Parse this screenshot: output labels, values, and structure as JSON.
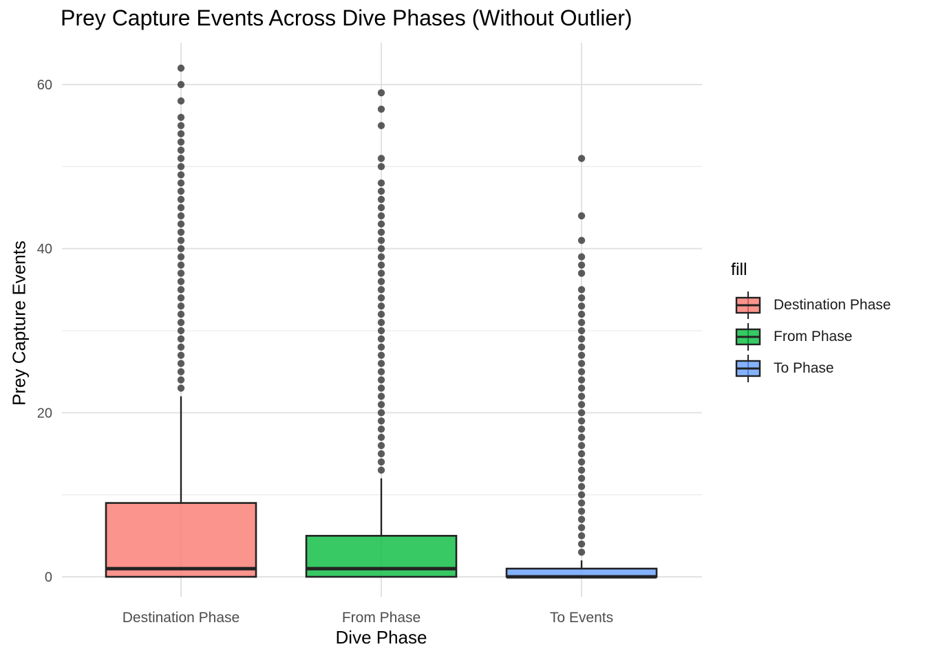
{
  "chart_data": {
    "type": "box",
    "title": "Prey Capture Events Across Dive Phases (Without Outlier)",
    "xlabel": "Dive Phase",
    "ylabel": "Prey Capture Events",
    "ylim": [
      -2.4,
      65
    ],
    "yticks": [
      0,
      20,
      40,
      60
    ],
    "grid": true,
    "legend": {
      "title": "fill",
      "position": "right",
      "entries": [
        "Destination Phase",
        "From Phase",
        "To Phase"
      ]
    },
    "categories": [
      "Destination Phase",
      "From Phase",
      "To Events"
    ],
    "colors": [
      "#F8766D",
      "#00BA38",
      "#619CFF"
    ],
    "boxes": [
      {
        "category": "Destination Phase",
        "fill": "Destination Phase",
        "q1": 0,
        "median": 1,
        "q3": 9,
        "whisker_low": 0,
        "whisker_high": 22,
        "outliers": [
          23,
          24,
          25,
          26,
          27,
          28,
          29,
          30,
          31,
          32,
          33,
          34,
          35,
          36,
          37,
          38,
          39,
          40,
          41,
          42,
          43,
          44,
          45,
          46,
          47,
          48,
          49,
          50,
          51,
          52,
          53,
          54,
          55,
          56,
          58,
          60,
          62
        ]
      },
      {
        "category": "From Phase",
        "fill": "From Phase",
        "q1": 0,
        "median": 1,
        "q3": 5,
        "whisker_low": 0,
        "whisker_high": 12,
        "outliers": [
          13,
          14,
          15,
          16,
          17,
          18,
          19,
          20,
          21,
          22,
          23,
          24,
          25,
          26,
          27,
          28,
          29,
          30,
          31,
          32,
          33,
          34,
          35,
          36,
          37,
          38,
          39,
          40,
          41,
          42,
          43,
          44,
          45,
          46,
          47,
          48,
          50,
          51,
          55,
          57,
          59
        ]
      },
      {
        "category": "To Events",
        "fill": "To Phase",
        "q1": 0,
        "median": 0,
        "q3": 1,
        "whisker_low": 0,
        "whisker_high": 2,
        "outliers": [
          3,
          4,
          5,
          6,
          7,
          8,
          9,
          10,
          11,
          12,
          13,
          14,
          15,
          16,
          17,
          18,
          19,
          20,
          21,
          22,
          23,
          24,
          25,
          26,
          27,
          28,
          29,
          30,
          31,
          32,
          33,
          34,
          35,
          37,
          38,
          39,
          41,
          44,
          51
        ]
      }
    ]
  }
}
